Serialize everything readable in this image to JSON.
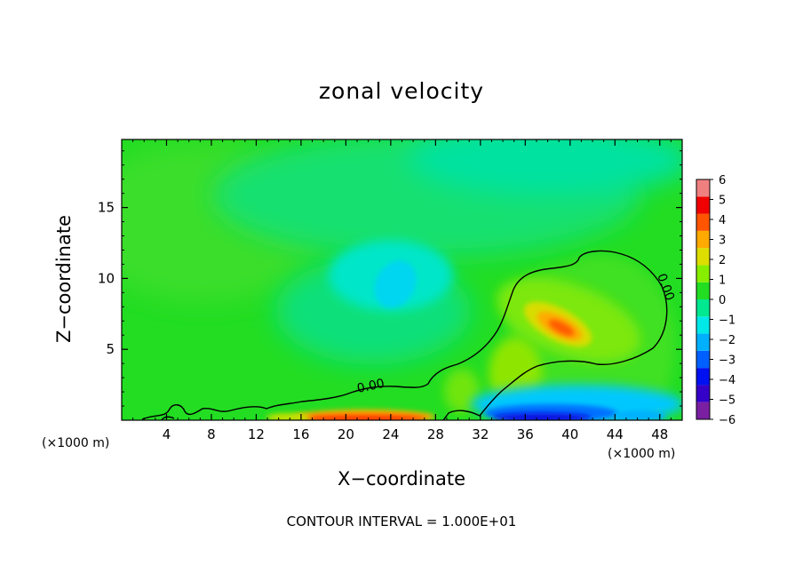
{
  "chart_data": {
    "type": "heatmap",
    "title": "zonal velocity",
    "xlabel": "X−coordinate",
    "ylabel": "Z−coordinate",
    "x_unit_label": "(×1000 m)",
    "y_unit_label": "(×1000 m)",
    "footer": "CONTOUR INTERVAL = 1.000E+01",
    "xlim": [
      0,
      50
    ],
    "ylim": [
      0,
      19.8
    ],
    "x_ticks": [
      4,
      8,
      12,
      16,
      20,
      24,
      28,
      32,
      36,
      40,
      44,
      48
    ],
    "y_ticks": [
      5,
      10,
      15
    ],
    "x_tick_labels": [
      "4",
      "8",
      "12",
      "16",
      "20",
      "24",
      "28",
      "32",
      "36",
      "40",
      "44",
      "48"
    ],
    "y_tick_labels": [
      "5",
      "10",
      "15"
    ],
    "colorbar": {
      "levels": [
        -6,
        -5,
        -4,
        -3,
        -2,
        -1,
        0,
        1,
        2,
        3,
        4,
        5,
        6
      ],
      "labels": [
        "6",
        "5",
        "4",
        "3",
        "2",
        "1",
        "0",
        "−1",
        "−2",
        "−3",
        "−4",
        "−5",
        "−6"
      ],
      "colors": [
        "#7a1fa2",
        "#3500c8",
        "#0010f0",
        "#0060ff",
        "#00b0ff",
        "#00e8e8",
        "#00e890",
        "#22dd22",
        "#88ee00",
        "#dddd00",
        "#ffaa00",
        "#ff5500",
        "#f00000",
        "#f08080"
      ]
    },
    "contour_labels": [
      "0.00",
      "0.00"
    ],
    "features": [
      {
        "kind": "max",
        "x": 39,
        "z": 6.8,
        "value": 3.5
      },
      {
        "kind": "min",
        "x": 24.5,
        "z": 9.5,
        "value": -2
      },
      {
        "kind": "max",
        "x": 24,
        "z": 0.3,
        "value": 4.5
      },
      {
        "kind": "min",
        "x": 38,
        "z": 0.2,
        "value": -5
      }
    ]
  }
}
